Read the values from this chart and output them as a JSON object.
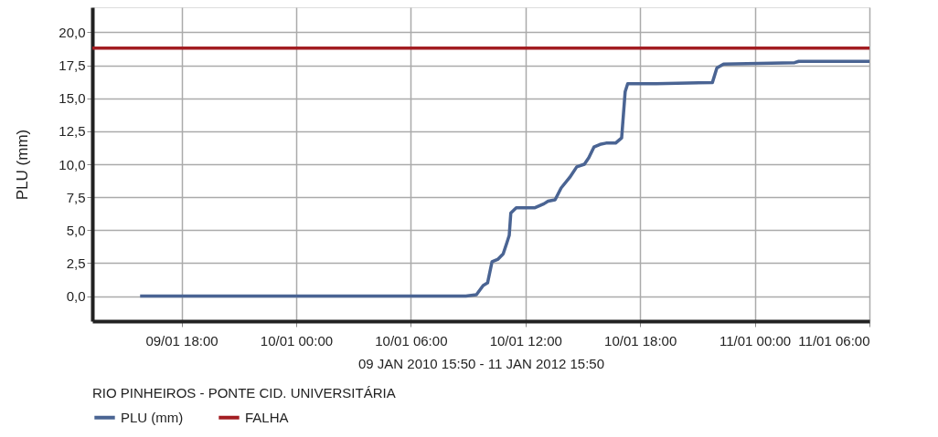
{
  "chart_data": {
    "type": "line",
    "xlabel": "09 JAN 2010 15:50 - 11 JAN 2012 15:50",
    "ylabel": "PLU (mm)",
    "legend_title": "RIO PINHEIROS - PONTE CID. UNIVERSITÁRIA",
    "series": [
      {
        "name": "PLU (mm)",
        "color": "#4a6493",
        "x": [
          "2010-01-09T15:50",
          "2010-01-10T08:53",
          "2010-01-10T09:26",
          "2010-01-10T09:47",
          "2010-01-10T10:01",
          "2010-01-10T10:15",
          "2010-01-10T10:34",
          "2010-01-10T10:50",
          "2010-01-10T11:01",
          "2010-01-10T11:09",
          "2010-01-10T11:14",
          "2010-01-10T11:31",
          "2010-01-10T12:30",
          "2010-01-10T12:58",
          "2010-01-10T13:11",
          "2010-01-10T13:33",
          "2010-01-10T13:52",
          "2010-01-10T14:19",
          "2010-01-10T14:41",
          "2010-01-10T15:05",
          "2010-01-10T15:19",
          "2010-01-10T15:35",
          "2010-01-10T15:54",
          "2010-01-10T16:13",
          "2010-01-10T16:43",
          "2010-01-10T17:02",
          "2010-01-10T17:13",
          "2010-01-10T17:21",
          "2010-01-10T18:50",
          "2010-01-10T21:47",
          "2010-01-10T22:01",
          "2010-01-10T22:22",
          "2010-01-11T02:05",
          "2010-01-11T02:18",
          "2010-01-11T06:00"
        ],
        "values": [
          0.0,
          0.0,
          0.1,
          0.8,
          1.0,
          2.6,
          2.8,
          3.2,
          4.0,
          4.6,
          6.3,
          6.7,
          6.7,
          7.0,
          7.2,
          7.3,
          8.2,
          9.0,
          9.8,
          10.0,
          10.5,
          11.3,
          11.5,
          11.6,
          11.6,
          12.0,
          15.5,
          16.1,
          16.1,
          16.2,
          17.3,
          17.6,
          17.7,
          17.8,
          17.8
        ]
      },
      {
        "name": "FALHA",
        "color": "#a31d22",
        "x": [
          "2010-01-09T13:20",
          "2010-01-11T06:00"
        ],
        "values": [
          18.8,
          18.8
        ]
      }
    ],
    "xlim": [
      "2010-01-09T13:20",
      "2010-01-11T06:00"
    ],
    "xticks": [
      {
        "value": "2010-01-09T18:00",
        "label": "09/01 18:00"
      },
      {
        "value": "2010-01-10T00:00",
        "label": "10/01 00:00"
      },
      {
        "value": "2010-01-10T06:00",
        "label": "10/01 06:00"
      },
      {
        "value": "2010-01-10T12:00",
        "label": "10/01 12:00"
      },
      {
        "value": "2010-01-10T18:00",
        "label": "10/01 18:00"
      },
      {
        "value": "2010-01-11T00:00",
        "label": "11/01 00:00"
      },
      {
        "value": "2010-01-11T06:00",
        "label": "11/01 06:00"
      }
    ],
    "ylim": [
      -1.9,
      21.9
    ],
    "yticks": [
      {
        "value": 0,
        "label": "0,0"
      },
      {
        "value": 2.5,
        "label": "2,5"
      },
      {
        "value": 5,
        "label": "5,0"
      },
      {
        "value": 7.5,
        "label": "7,5"
      },
      {
        "value": 10,
        "label": "10,0"
      },
      {
        "value": 12.5,
        "label": "12,5"
      },
      {
        "value": 15,
        "label": "15,0"
      },
      {
        "value": 17.5,
        "label": "17,5"
      },
      {
        "value": 20,
        "label": "20,0"
      }
    ],
    "grid": true,
    "legend": "bottom",
    "line_style": "solid",
    "marker": "none"
  }
}
